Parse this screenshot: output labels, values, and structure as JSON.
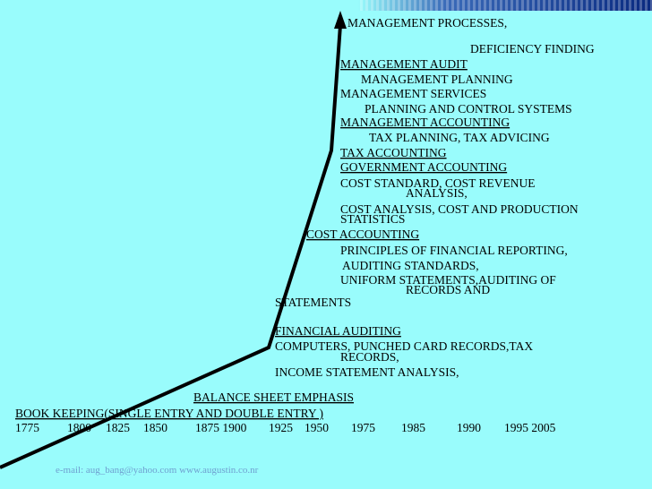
{
  "timeline": {
    "items": [
      "MANAGEMENT PROCESSES,",
      "DEFICIENCY FINDING",
      "MANAGEMENT AUDIT",
      "MANAGEMENT PLANNING",
      "MANAGEMENT SERVICES",
      "PLANNING AND CONTROL SYSTEMS",
      "MANAGEMENT ACCOUNTING",
      "TAX PLANNING, TAX ADVICING",
      "TAX ACCOUNTING",
      "GOVERNMENT ACCOUNTING",
      "COST STANDARD, COST REVENUE",
      "ANALYSIS,",
      "COST ANALYSIS, COST AND PRODUCTION",
      "STATISTICS",
      "COST ACCOUNTING",
      "PRINCIPLES OF FINANCIAL REPORTING,",
      "AUDITING STANDARDS,",
      "UNIFORM STATEMENTS,AUDITING OF",
      "RECORDS AND",
      "STATEMENTS",
      "FINANCIAL AUDITING",
      "COMPUTERS, PUNCHED CARD RECORDS,TAX",
      "RECORDS,",
      "INCOME STATEMENT ANALYSIS,",
      "BALANCE SHEET EMPHASIS",
      "BOOK KEEPING(SINGLE ENTRY AND DOUBLE ENTRY )"
    ],
    "years": [
      "1775",
      "1800",
      "1825",
      "1850",
      "1875 1900",
      "1925",
      "1950",
      "1975",
      "1985",
      "1990",
      "1995 2005"
    ]
  },
  "footer": "e-mail: aug_bang@yahoo.com  www.augustin.co.nr"
}
